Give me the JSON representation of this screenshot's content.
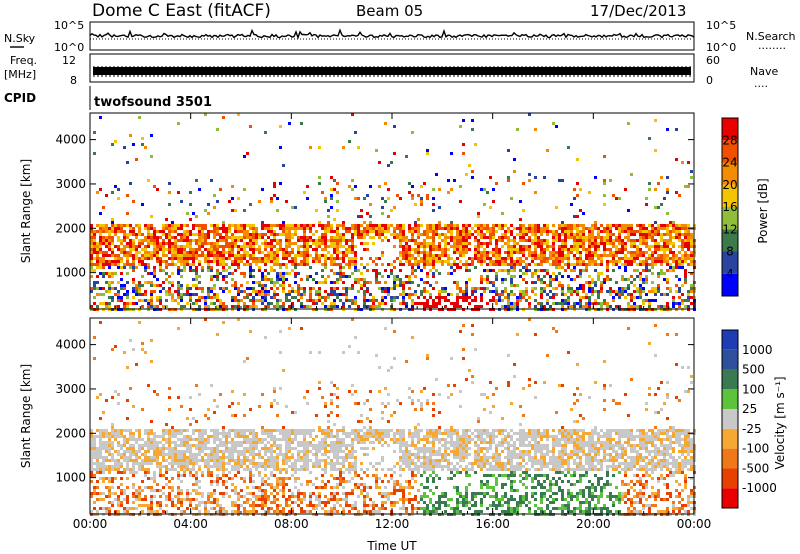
{
  "header": {
    "station": "Dome C East (fitACF)",
    "beam": "Beam 05",
    "date": "17/Dec/2013"
  },
  "side_labels": {
    "nsky": "N.Sky",
    "freq": "Freq.",
    "freq_unit": "[MHz]",
    "cpid": "CPID",
    "nsearch": "N.Search",
    "nave": "Nave",
    "dots_short": "....",
    "dots_long": "........"
  },
  "cpid_value": "twofsound 3501",
  "nsky_ticks": [
    "10^5",
    "10^0"
  ],
  "freq_ticks": [
    "12",
    "8"
  ],
  "nave_ticks": [
    "60",
    "0"
  ],
  "colors": {
    "power": [
      "#0000ff",
      "#2844a0",
      "#3d7a4b",
      "#8fbf3a",
      "#f5c400",
      "#f58c00",
      "#f05000",
      "#e80000"
    ],
    "velocity": [
      "#1e3cb4",
      "#2e4f9e",
      "#3a7a50",
      "#5cc43c",
      "#c8c8c8",
      "#f5a832",
      "#f07818",
      "#e84000",
      "#e80000"
    ]
  },
  "chart_data": [
    {
      "type": "heatmap",
      "quantity": "power",
      "ylabel": "Slant Range [km]",
      "xlabel": "Time UT",
      "x_ticks": [
        "00:00",
        "04:00",
        "08:00",
        "12:00",
        "16:00",
        "20:00",
        "00:00"
      ],
      "x_range_hours": [
        0,
        24
      ],
      "y_ticks": [
        1000,
        2000,
        3000,
        4000
      ],
      "y_range_km": [
        180,
        4600
      ],
      "colorbar_label": "Power [dB]",
      "colorbar_ticks": [
        "4",
        "8",
        "12",
        "16",
        "20",
        "24",
        "28"
      ],
      "colorbar_range": [
        0,
        32
      ]
    },
    {
      "type": "heatmap",
      "quantity": "velocity",
      "ylabel": "Slant Range [km]",
      "xlabel": "Time UT",
      "x_ticks": [
        "00:00",
        "04:00",
        "08:00",
        "12:00",
        "16:00",
        "20:00",
        "00:00"
      ],
      "x_range_hours": [
        0,
        24
      ],
      "y_ticks": [
        1000,
        2000,
        3000,
        4000
      ],
      "y_range_km": [
        180,
        4600
      ],
      "colorbar_label": "Velocity [m s⁻¹]",
      "colorbar_ticks": [
        "1000",
        "500",
        "100",
        "25",
        "-25",
        "-100",
        "-500",
        "-1000"
      ]
    }
  ]
}
